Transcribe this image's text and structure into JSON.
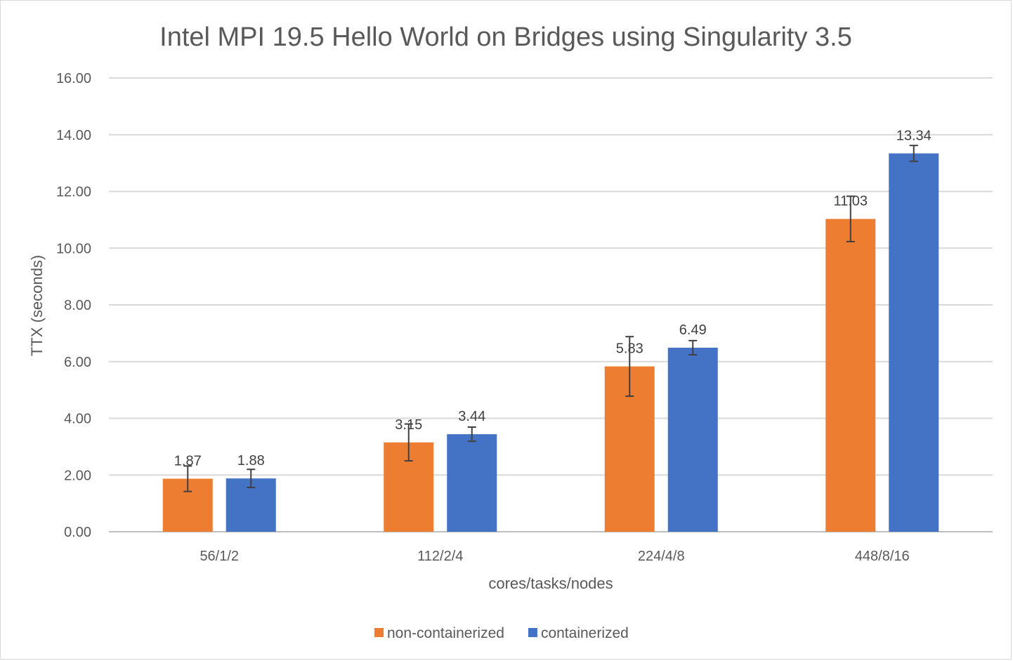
{
  "chart_data": {
    "type": "bar",
    "title": "Intel MPI 19.5 Hello World on Bridges using Singularity 3.5",
    "xlabel": "cores/tasks/nodes",
    "ylabel": "TTX (seconds)",
    "ylim": [
      0,
      16
    ],
    "yticks": [
      "0.00",
      "2.00",
      "4.00",
      "6.00",
      "8.00",
      "10.00",
      "12.00",
      "14.00",
      "16.00"
    ],
    "grid": true,
    "legend_position": "bottom",
    "categories": [
      "56/1/2",
      "112/2/4",
      "224/4/8",
      "448/8/16"
    ],
    "series": [
      {
        "name": "non-containerized",
        "color": "#ED7D31",
        "values": [
          1.87,
          3.15,
          5.83,
          11.03
        ],
        "labels": [
          "1.87",
          "3.15",
          "5.83",
          "11.03"
        ],
        "error": [
          0.45,
          0.65,
          1.05,
          0.8
        ]
      },
      {
        "name": "containerized",
        "color": "#4472C4",
        "values": [
          1.88,
          3.44,
          6.49,
          13.34
        ],
        "labels": [
          "1.88",
          "3.44",
          "6.49",
          "13.34"
        ],
        "error": [
          0.32,
          0.25,
          0.25,
          0.28
        ]
      }
    ]
  }
}
